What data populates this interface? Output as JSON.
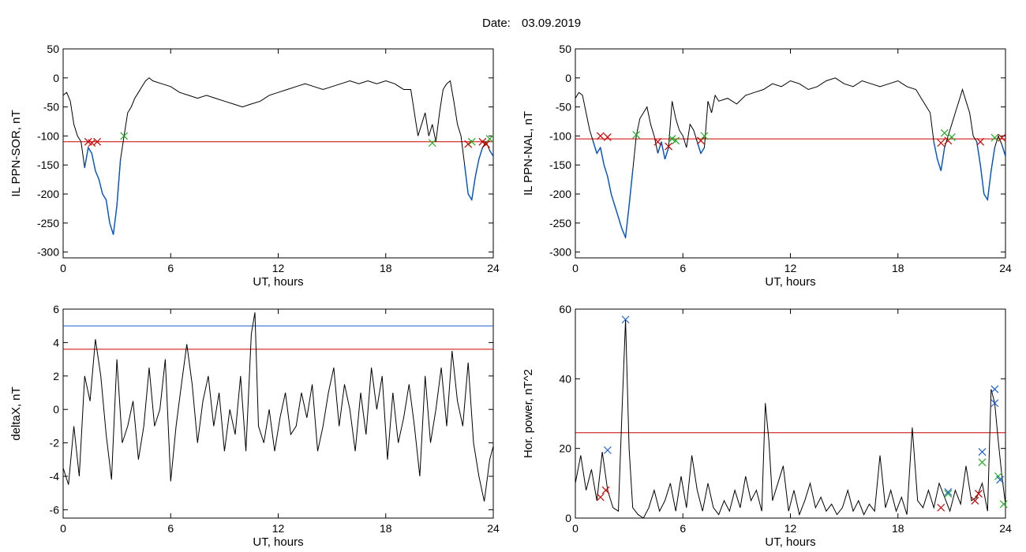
{
  "figure": {
    "date_label": "Date:",
    "date_value": "03.09.2019",
    "colors": {
      "background": "#ffffff",
      "axes": "#000000",
      "trace": "#000000",
      "below": "#0055cc",
      "threshold_red": "#cc0000",
      "threshold_blue": "#1f5fd0",
      "marker_red": "#cc0000",
      "marker_green": "#22aa22",
      "marker_blue": "#1f5fd0"
    }
  },
  "chart_data": [
    {
      "id": "sor",
      "type": "line",
      "xlabel": "UT, hours",
      "ylabel": "IL PPN-SOR, nT",
      "xlim": [
        0,
        24
      ],
      "ylim": [
        -310,
        50
      ],
      "xticks": [
        "0",
        "6",
        "12",
        "18",
        "24"
      ],
      "yticks": [
        "50",
        "0",
        "-50",
        "-100",
        "-150",
        "-200",
        "-250",
        "-300"
      ],
      "threshold": {
        "value": -110,
        "color": "#cc0000"
      },
      "series": [
        {
          "x": [
            0.0,
            0.2,
            0.4,
            0.6,
            0.8,
            1.0,
            1.2,
            1.4,
            1.6,
            1.8,
            2.0,
            2.2,
            2.4,
            2.6,
            2.8,
            3.0,
            3.2,
            3.4,
            3.6,
            3.8,
            4.0,
            4.2,
            4.4,
            4.6,
            4.8,
            5.0,
            5.5,
            6.0,
            6.5,
            7.0,
            7.5,
            8.0,
            8.5,
            9.0,
            9.5,
            10.0,
            10.5,
            11.0,
            11.5,
            12.0,
            12.5,
            13.0,
            13.5,
            14.0,
            14.5,
            15.0,
            15.5,
            16.0,
            16.5,
            17.0,
            17.5,
            18.0,
            18.5,
            19.0,
            19.4,
            19.8,
            20.0,
            20.2,
            20.4,
            20.6,
            20.8,
            21.0,
            21.2,
            21.4,
            21.6,
            21.8,
            22.0,
            22.2,
            22.4,
            22.6,
            22.8,
            23.0,
            23.2,
            23.4,
            23.6,
            23.8,
            24.0
          ],
          "y": [
            -30,
            -25,
            -40,
            -80,
            -100,
            -110,
            -155,
            -120,
            -130,
            -160,
            -175,
            -200,
            -210,
            -250,
            -270,
            -220,
            -140,
            -100,
            -60,
            -50,
            -35,
            -25,
            -15,
            -5,
            0,
            -5,
            -10,
            -15,
            -25,
            -30,
            -35,
            -30,
            -35,
            -40,
            -45,
            -50,
            -45,
            -40,
            -30,
            -25,
            -20,
            -15,
            -10,
            -15,
            -20,
            -15,
            -10,
            -5,
            -10,
            -5,
            -10,
            -5,
            -10,
            -20,
            -20,
            -100,
            -80,
            -60,
            -100,
            -80,
            -110,
            -60,
            -20,
            -10,
            -5,
            -40,
            -80,
            -100,
            -150,
            -200,
            -210,
            -170,
            -140,
            -120,
            -110,
            -125,
            -135
          ]
        }
      ],
      "markers": [
        {
          "x": 1.4,
          "y": -110,
          "color": "red"
        },
        {
          "x": 1.6,
          "y": -112,
          "color": "red"
        },
        {
          "x": 1.9,
          "y": -110,
          "color": "red"
        },
        {
          "x": 3.4,
          "y": -100,
          "color": "green"
        },
        {
          "x": 20.6,
          "y": -112,
          "color": "green"
        },
        {
          "x": 22.6,
          "y": -114,
          "color": "red"
        },
        {
          "x": 22.8,
          "y": -110,
          "color": "green"
        },
        {
          "x": 23.4,
          "y": -110,
          "color": "red"
        },
        {
          "x": 23.6,
          "y": -114,
          "color": "red"
        },
        {
          "x": 23.8,
          "y": -105,
          "color": "green"
        }
      ]
    },
    {
      "id": "nal",
      "type": "line",
      "xlabel": "UT, hours",
      "ylabel": "IL PPN-NAL, nT",
      "xlim": [
        0,
        24
      ],
      "ylim": [
        -310,
        50
      ],
      "xticks": [
        "0",
        "6",
        "12",
        "18",
        "24"
      ],
      "yticks": [
        "50",
        "0",
        "-50",
        "-100",
        "-150",
        "-200",
        "-250",
        "-300"
      ],
      "threshold": {
        "value": -105,
        "color": "#cc0000"
      },
      "series": [
        {
          "x": [
            0.0,
            0.2,
            0.4,
            0.6,
            0.8,
            1.0,
            1.2,
            1.4,
            1.6,
            1.8,
            2.0,
            2.2,
            2.4,
            2.6,
            2.8,
            3.0,
            3.2,
            3.4,
            3.6,
            3.8,
            4.0,
            4.2,
            4.4,
            4.6,
            4.8,
            5.0,
            5.2,
            5.4,
            5.6,
            5.8,
            6.0,
            6.2,
            6.4,
            6.6,
            6.8,
            7.0,
            7.2,
            7.4,
            7.6,
            7.8,
            8.0,
            8.5,
            9.0,
            9.5,
            10.0,
            10.5,
            11.0,
            11.5,
            12.0,
            12.5,
            13.0,
            13.5,
            14.0,
            14.5,
            15.0,
            15.5,
            16.0,
            16.5,
            17.0,
            17.5,
            18.0,
            18.5,
            19.0,
            19.4,
            19.8,
            20.0,
            20.2,
            20.4,
            20.6,
            20.8,
            21.0,
            21.2,
            21.4,
            21.6,
            21.8,
            22.0,
            22.2,
            22.4,
            22.6,
            22.8,
            23.0,
            23.2,
            23.4,
            23.6,
            23.8,
            24.0
          ],
          "y": [
            -35,
            -25,
            -30,
            -60,
            -90,
            -110,
            -130,
            -120,
            -150,
            -170,
            -200,
            -220,
            -240,
            -260,
            -275,
            -220,
            -160,
            -100,
            -70,
            -60,
            -50,
            -80,
            -100,
            -130,
            -110,
            -140,
            -120,
            -40,
            -70,
            -90,
            -100,
            -120,
            -80,
            -90,
            -110,
            -130,
            -120,
            -40,
            -60,
            -30,
            -40,
            -35,
            -45,
            -30,
            -25,
            -20,
            -10,
            -15,
            -5,
            -10,
            -20,
            -15,
            -5,
            0,
            -10,
            -15,
            -5,
            -10,
            -15,
            -10,
            -5,
            -15,
            -20,
            -40,
            -60,
            -110,
            -140,
            -160,
            -120,
            -100,
            -80,
            -60,
            -40,
            -20,
            -40,
            -60,
            -100,
            -110,
            -150,
            -200,
            -210,
            -160,
            -120,
            -100,
            -115,
            -135
          ]
        }
      ],
      "markers": [
        {
          "x": 1.4,
          "y": -100,
          "color": "red"
        },
        {
          "x": 1.8,
          "y": -102,
          "color": "red"
        },
        {
          "x": 3.4,
          "y": -98,
          "color": "green"
        },
        {
          "x": 4.6,
          "y": -110,
          "color": "red"
        },
        {
          "x": 5.2,
          "y": -118,
          "color": "red"
        },
        {
          "x": 5.4,
          "y": -105,
          "color": "green"
        },
        {
          "x": 5.6,
          "y": -108,
          "color": "green"
        },
        {
          "x": 7.0,
          "y": -108,
          "color": "red"
        },
        {
          "x": 7.2,
          "y": -100,
          "color": "green"
        },
        {
          "x": 20.4,
          "y": -112,
          "color": "red"
        },
        {
          "x": 20.6,
          "y": -95,
          "color": "green"
        },
        {
          "x": 20.8,
          "y": -108,
          "color": "red"
        },
        {
          "x": 21.0,
          "y": -102,
          "color": "green"
        },
        {
          "x": 22.6,
          "y": -110,
          "color": "red"
        },
        {
          "x": 23.4,
          "y": -103,
          "color": "green"
        },
        {
          "x": 23.8,
          "y": -103,
          "color": "red"
        }
      ]
    },
    {
      "id": "deltax",
      "type": "line",
      "xlabel": "UT, hours",
      "ylabel": "deltaX, nT",
      "xlim": [
        0,
        24
      ],
      "ylim": [
        -6.5,
        6
      ],
      "xticks": [
        "0",
        "6",
        "12",
        "18",
        "24"
      ],
      "yticks": [
        "6",
        "4",
        "2",
        "0",
        "-2",
        "-4",
        "-6"
      ],
      "thresholds": [
        {
          "value": 5.0,
          "color": "#1f5fd0"
        },
        {
          "value": 3.6,
          "color": "#cc0000"
        }
      ],
      "series": [
        {
          "x": [
            0.0,
            0.3,
            0.6,
            0.9,
            1.2,
            1.5,
            1.8,
            2.1,
            2.4,
            2.7,
            3.0,
            3.3,
            3.6,
            3.9,
            4.2,
            4.5,
            4.8,
            5.1,
            5.4,
            5.7,
            6.0,
            6.3,
            6.6,
            6.9,
            7.2,
            7.5,
            7.8,
            8.1,
            8.4,
            8.7,
            9.0,
            9.3,
            9.6,
            9.9,
            10.2,
            10.5,
            10.7,
            10.9,
            11.2,
            11.5,
            11.8,
            12.1,
            12.4,
            12.7,
            13.0,
            13.3,
            13.6,
            13.9,
            14.2,
            14.5,
            14.8,
            15.1,
            15.4,
            15.7,
            16.0,
            16.3,
            16.6,
            16.9,
            17.2,
            17.5,
            17.8,
            18.1,
            18.4,
            18.7,
            19.0,
            19.3,
            19.6,
            19.9,
            20.2,
            20.5,
            20.8,
            21.1,
            21.4,
            21.7,
            22.0,
            22.3,
            22.6,
            22.9,
            23.2,
            23.5,
            23.8,
            24.0
          ],
          "y": [
            -3.5,
            -4.5,
            -1.0,
            -4.0,
            2.0,
            0.5,
            4.2,
            2.0,
            -1.5,
            -4.2,
            3.0,
            -2.0,
            -1.0,
            0.5,
            -3.0,
            -1.0,
            2.5,
            -1.0,
            0.0,
            3.0,
            -4.3,
            -1.0,
            1.5,
            3.9,
            1.5,
            -2.0,
            0.5,
            2.0,
            -1.0,
            1.0,
            -2.5,
            0.0,
            -1.5,
            2.0,
            -2.5,
            4.5,
            5.8,
            -1.0,
            -2.0,
            0.0,
            -2.5,
            -0.5,
            1.0,
            -1.5,
            -1.0,
            1.0,
            -0.5,
            1.5,
            -2.5,
            -1.0,
            1.0,
            2.5,
            -1.0,
            1.5,
            0.0,
            -2.5,
            1.0,
            -1.5,
            2.5,
            0.0,
            2.0,
            -3.0,
            1.0,
            -2.0,
            -0.5,
            1.5,
            -1.0,
            -4.0,
            2.0,
            -2.0,
            0.0,
            2.5,
            -1.0,
            3.5,
            0.5,
            -1.0,
            2.8,
            -2.0,
            -4.0,
            -5.5,
            -3.0,
            -2.2
          ]
        }
      ]
    },
    {
      "id": "power",
      "type": "line",
      "xlabel": "UT, hours",
      "ylabel": "Hor. power, nT^2",
      "xlim": [
        0,
        24
      ],
      "ylim": [
        0,
        60
      ],
      "xticks": [
        "0",
        "6",
        "12",
        "18",
        "24"
      ],
      "yticks": [
        "60",
        "40",
        "20",
        "0"
      ],
      "threshold": {
        "value": 24.5,
        "color": "#cc0000"
      },
      "series": [
        {
          "x": [
            0.0,
            0.3,
            0.6,
            0.9,
            1.2,
            1.5,
            1.8,
            2.1,
            2.4,
            2.6,
            2.8,
            3.0,
            3.2,
            3.5,
            3.8,
            4.1,
            4.4,
            4.7,
            5.0,
            5.3,
            5.6,
            5.9,
            6.2,
            6.5,
            6.8,
            7.1,
            7.4,
            7.7,
            8.0,
            8.3,
            8.6,
            8.9,
            9.2,
            9.5,
            9.8,
            10.1,
            10.4,
            10.6,
            10.8,
            11.0,
            11.3,
            11.6,
            11.9,
            12.2,
            12.5,
            12.8,
            13.1,
            13.4,
            13.7,
            14.0,
            14.3,
            14.6,
            14.9,
            15.2,
            15.5,
            15.8,
            16.1,
            16.4,
            16.7,
            17.0,
            17.3,
            17.6,
            17.9,
            18.2,
            18.5,
            18.8,
            19.1,
            19.4,
            19.7,
            20.0,
            20.3,
            20.6,
            20.9,
            21.2,
            21.5,
            21.8,
            22.1,
            22.4,
            22.7,
            23.0,
            23.2,
            23.4,
            23.6,
            23.8,
            24.0
          ],
          "y": [
            10,
            18,
            8,
            14,
            5,
            19,
            8,
            3,
            2,
            30,
            57,
            20,
            3,
            1,
            0,
            3,
            8,
            2,
            5,
            10,
            2,
            12,
            3,
            18,
            8,
            2,
            10,
            3,
            1,
            5,
            2,
            8,
            3,
            12,
            5,
            8,
            2,
            33,
            22,
            5,
            10,
            15,
            2,
            8,
            1,
            5,
            10,
            3,
            6,
            2,
            4,
            1,
            3,
            8,
            2,
            5,
            1,
            4,
            2,
            18,
            3,
            8,
            2,
            6,
            1,
            26,
            5,
            3,
            8,
            3,
            10,
            6,
            2,
            8,
            4,
            15,
            5,
            6,
            10,
            2,
            37,
            33,
            22,
            12,
            4
          ]
        }
      ],
      "markers": [
        {
          "x": 1.4,
          "y": 6,
          "color": "red"
        },
        {
          "x": 1.7,
          "y": 8,
          "color": "red"
        },
        {
          "x": 1.8,
          "y": 19.5,
          "color": "blue"
        },
        {
          "x": 2.8,
          "y": 57,
          "color": "blue"
        },
        {
          "x": 20.4,
          "y": 3,
          "color": "red"
        },
        {
          "x": 20.8,
          "y": 7,
          "color": "green"
        },
        {
          "x": 20.8,
          "y": 7.5,
          "color": "blue"
        },
        {
          "x": 22.3,
          "y": 5,
          "color": "red"
        },
        {
          "x": 22.5,
          "y": 7,
          "color": "red"
        },
        {
          "x": 22.7,
          "y": 19,
          "color": "blue"
        },
        {
          "x": 22.7,
          "y": 16,
          "color": "green"
        },
        {
          "x": 23.4,
          "y": 37,
          "color": "blue"
        },
        {
          "x": 23.4,
          "y": 33,
          "color": "blue"
        },
        {
          "x": 23.6,
          "y": 12,
          "color": "green"
        },
        {
          "x": 23.7,
          "y": 11,
          "color": "blue"
        },
        {
          "x": 23.9,
          "y": 4,
          "color": "green"
        }
      ]
    }
  ]
}
